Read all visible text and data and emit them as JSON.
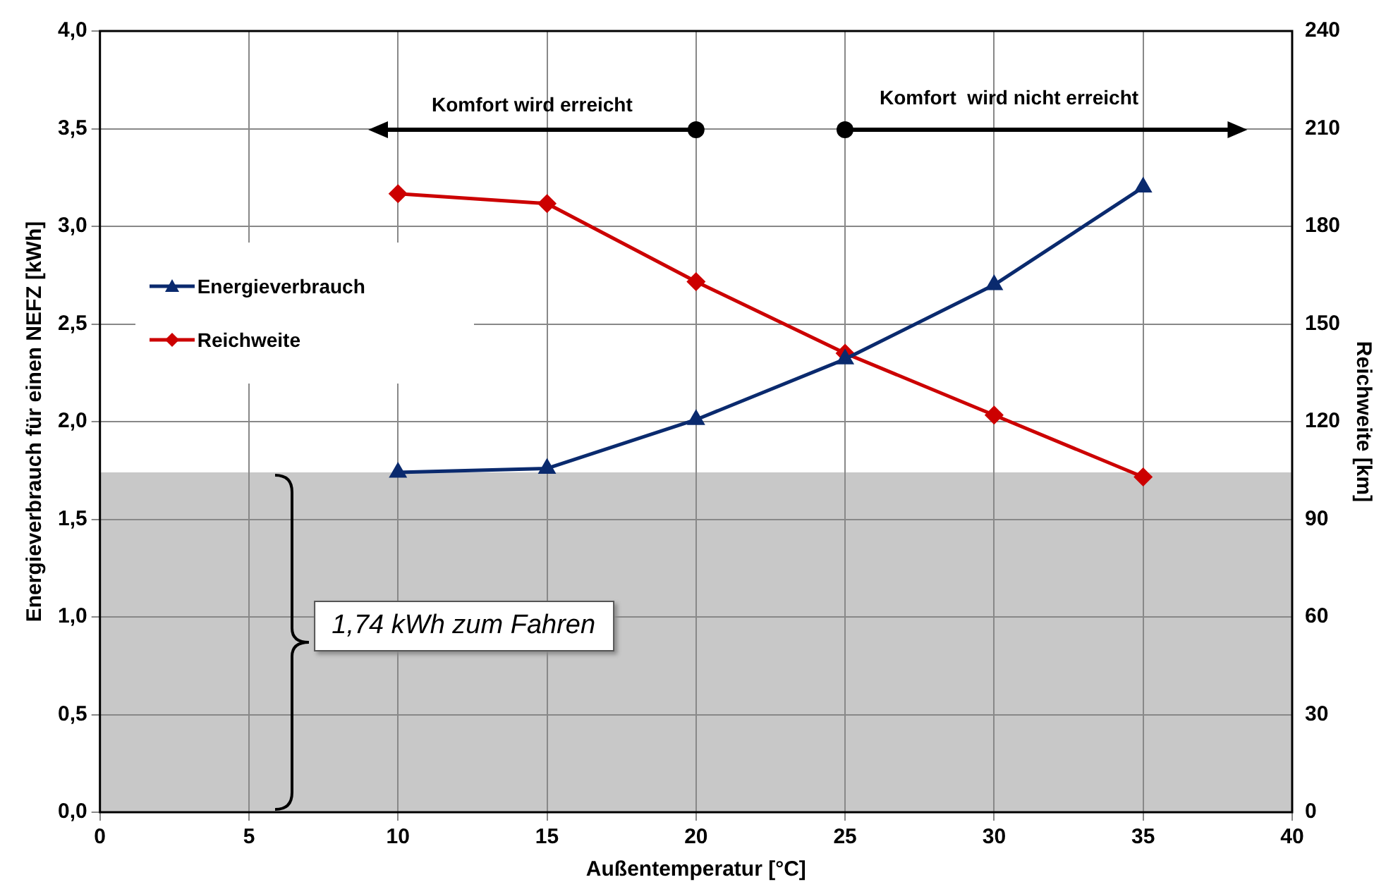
{
  "chart_data": {
    "type": "line",
    "xlabel": "Außentemperatur [°C]",
    "ylabel": "Energieverbrauch für einen NEFZ [kWh]",
    "y2label": "Reichweite [km]",
    "x": [
      10,
      15,
      20,
      25,
      30,
      35
    ],
    "series": [
      {
        "name": "Energieverbrauch",
        "color": "#0a2a6e",
        "marker": "triangle",
        "values": [
          1.74,
          1.76,
          2.01,
          2.32,
          2.7,
          3.2
        ]
      },
      {
        "name": "Reichweite",
        "color": "#cc0000",
        "marker": "diamond",
        "axis": "y2",
        "values": [
          190,
          187,
          163,
          141,
          122,
          103
        ]
      }
    ],
    "xlim": [
      0,
      40
    ],
    "xticks": [
      0,
      5,
      10,
      15,
      20,
      25,
      30,
      35,
      40
    ],
    "ylim": [
      0,
      4
    ],
    "yticks": [
      {
        "value": 0,
        "label": "0,0"
      },
      {
        "value": 0.5,
        "label": "0,5"
      },
      {
        "value": 1,
        "label": "1,0"
      },
      {
        "value": 1.5,
        "label": "1,5"
      },
      {
        "value": 2,
        "label": "2,0"
      },
      {
        "value": 2.5,
        "label": "2,5"
      },
      {
        "value": 3,
        "label": "3,0"
      },
      {
        "value": 3.5,
        "label": "3,5"
      },
      {
        "value": 4,
        "label": "4,0"
      }
    ],
    "y2lim": [
      0,
      240
    ],
    "y2ticks": [
      0,
      30,
      60,
      90,
      120,
      150,
      180,
      210,
      240
    ],
    "bands": [
      {
        "axis": "y",
        "from": 0,
        "to": 1.74,
        "color": "#c8c8c8"
      }
    ],
    "annotations": [
      "Komfort wird erreicht",
      "Komfort  wird nicht erreicht",
      "1,74 kWh zum Fahren"
    ],
    "grid": true,
    "legend": "left",
    "line_style": "solid"
  }
}
